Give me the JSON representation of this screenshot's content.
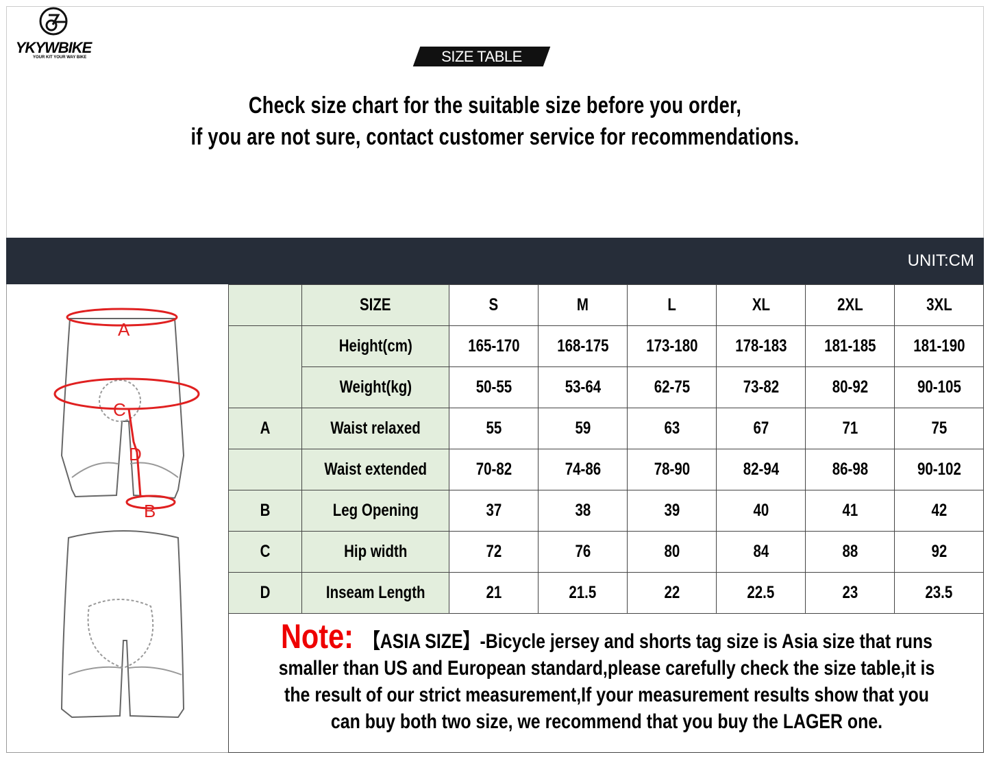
{
  "brand": {
    "name": "YKYWBIKE",
    "tagline": "YOUR KIT YOUR WAY BIKE"
  },
  "badge": "SIZE TABLE",
  "intro": [
    "Check size chart for the suitable size before you order,",
    "if you are not sure, contact customer service for recommendations."
  ],
  "unit": "UNIT:CM",
  "diagram_labels": {
    "a": "A",
    "b": "B",
    "c": "C",
    "d": "D"
  },
  "table": {
    "header": {
      "code": "",
      "label": "SIZE",
      "sizes": [
        "S",
        "M",
        "L",
        "XL",
        "2XL",
        "3XL"
      ]
    },
    "rows": [
      {
        "code": "",
        "label": "Height(cm)",
        "values": [
          "165-170",
          "168-175",
          "173-180",
          "178-183",
          "181-185",
          "181-190"
        ]
      },
      {
        "code": "",
        "label": "Weight(kg)",
        "values": [
          "50-55",
          "53-64",
          "62-75",
          "73-82",
          "80-92",
          "90-105"
        ]
      },
      {
        "code": "A",
        "label": "Waist relaxed",
        "values": [
          "55",
          "59",
          "63",
          "67",
          "71",
          "75"
        ]
      },
      {
        "code": "",
        "label": "Waist extended",
        "values": [
          "70-82",
          "74-86",
          "78-90",
          "82-94",
          "86-98",
          "90-102"
        ]
      },
      {
        "code": "B",
        "label": "Leg Opening",
        "values": [
          "37",
          "38",
          "39",
          "40",
          "41",
          "42"
        ]
      },
      {
        "code": "C",
        "label": "Hip width",
        "values": [
          "72",
          "76",
          "80",
          "84",
          "88",
          "92"
        ]
      },
      {
        "code": "D",
        "label": "Inseam Length",
        "values": [
          "21",
          "21.5",
          "22",
          "22.5",
          "23",
          "23.5"
        ]
      }
    ]
  },
  "note": {
    "label": "Note:",
    "text": "【ASIA SIZE】-Bicycle jersey and shorts tag size is Asia size that runs smaller than US and European standard,please carefully check the size table,it is the result of our strict measurement,If your measurement results show that you can buy both two size, we recommend that you buy the LAGER one."
  },
  "colors": {
    "band": "#262d39",
    "label_bg": "#e3eedd",
    "note_red": "#e00000",
    "measure_red": "#e02020"
  }
}
